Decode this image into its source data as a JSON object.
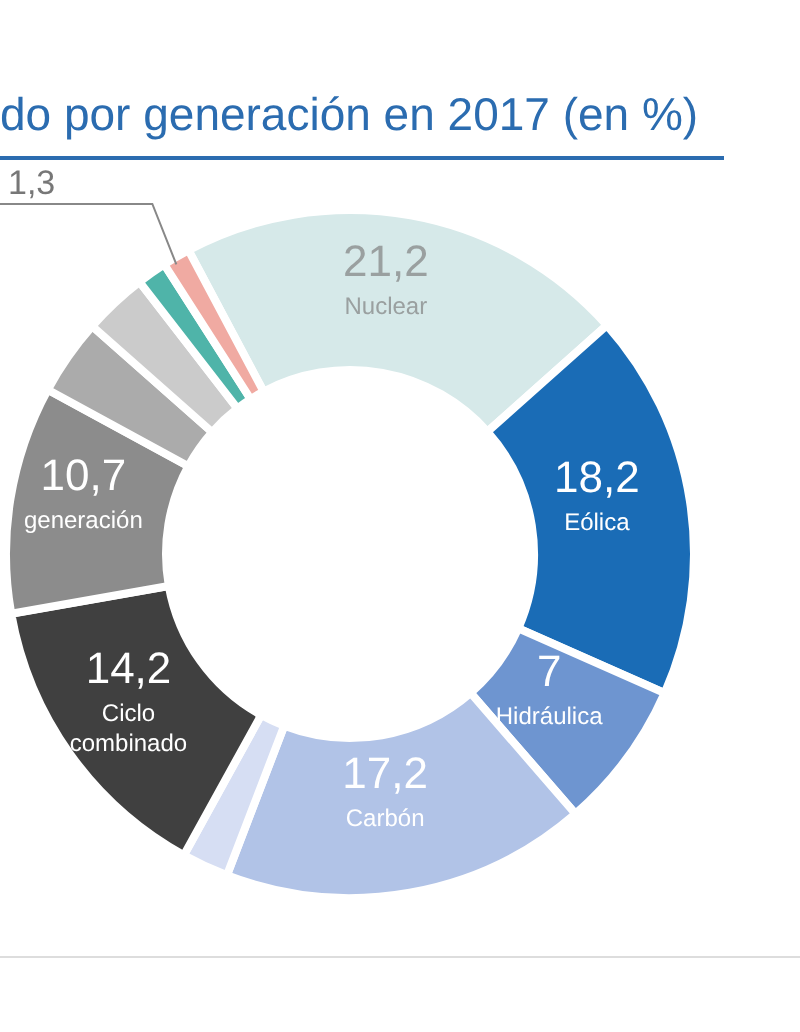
{
  "chart_data": {
    "type": "donut",
    "title": "do por generación en 2017 (en %)",
    "categories": [
      "Nuclear",
      "Eólica",
      "Hidráulica",
      "Carbón",
      null,
      "Ciclo combinado",
      "generación",
      null,
      null,
      null,
      null
    ],
    "values": [
      21.2,
      18.2,
      7,
      17.2,
      2.2,
      14.2,
      10.7,
      3.6,
      3.0,
      1.4,
      1.3
    ],
    "value_labels": [
      "21,2",
      "18,2",
      "7",
      "17,2",
      null,
      "14,2",
      "10,7",
      null,
      null,
      null,
      "1,3"
    ],
    "colors": [
      "#d6e9e9",
      "#1a6cb6",
      "#6e95d0",
      "#b1c3e7",
      "#d6def3",
      "#404040",
      "#8c8c8c",
      "#ababab",
      "#cbcbcb",
      "#4fb4a9",
      "#f0aaa2"
    ]
  }
}
